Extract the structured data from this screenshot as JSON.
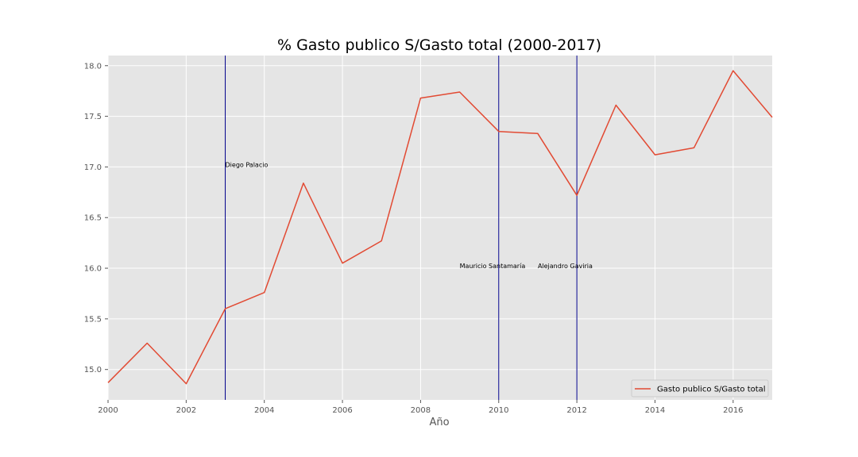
{
  "chart_data": {
    "type": "line",
    "title": "% Gasto publico S/Gasto total (2000-2017)",
    "xlabel": "Año",
    "ylabel": "",
    "xlim": [
      2000,
      2017
    ],
    "ylim": [
      14.7,
      18.1
    ],
    "grid": true,
    "x_ticks": [
      "2000",
      "2002",
      "2004",
      "2006",
      "2008",
      "2010",
      "2012",
      "2014",
      "2016"
    ],
    "y_ticks": [
      "15.0",
      "15.5",
      "16.0",
      "16.5",
      "17.0",
      "17.5",
      "18.0"
    ],
    "x": [
      2000,
      2001,
      2002,
      2003,
      2004,
      2005,
      2006,
      2007,
      2008,
      2009,
      2010,
      2011,
      2012,
      2013,
      2014,
      2015,
      2016,
      2017
    ],
    "series": [
      {
        "name": "Gasto publico S/Gasto total",
        "color": "#E24A33",
        "values": [
          14.87,
          15.26,
          14.86,
          15.6,
          15.76,
          16.84,
          16.05,
          16.27,
          17.68,
          17.74,
          17.35,
          17.33,
          16.72,
          17.61,
          17.12,
          17.19,
          17.95,
          17.49
        ]
      }
    ],
    "vlines": [
      {
        "x": 2003,
        "color": "#00008B"
      },
      {
        "x": 2010,
        "color": "#00008B"
      },
      {
        "x": 2012,
        "color": "#00008B"
      }
    ],
    "annotations": [
      {
        "text": "Diego Palacio",
        "x": 2003,
        "y": 17.0
      },
      {
        "text": "Mauricio Santamaría",
        "x": 2009,
        "y": 16.0
      },
      {
        "text": "Alejandro Gaviria",
        "x": 2011,
        "y": 16.0
      }
    ],
    "legend": {
      "position": "lower-right",
      "entries": [
        "Gasto publico S/Gasto total"
      ]
    },
    "colors": {
      "plot_bg": "#E5E5E5",
      "grid": "#FFFFFF",
      "vline": "#00008B",
      "series": "#E24A33"
    }
  }
}
